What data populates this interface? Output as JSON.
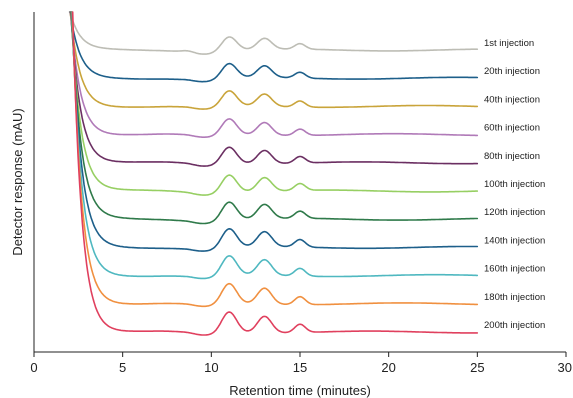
{
  "chart_data": {
    "type": "line",
    "title": "",
    "xlabel": "Retention time (minutes)",
    "ylabel": "Detector response (mAU)",
    "xlim": [
      0,
      30
    ],
    "xticks": [
      0,
      5,
      10,
      15,
      20,
      25,
      30
    ],
    "x_range_plotted": [
      2.0,
      25.0
    ],
    "y_axis": "stacked, unitless offsets (no tick labels)",
    "grid": false,
    "legend": "inline labels at right end of each trace",
    "peak_retention_times": [
      11.0,
      13.0,
      15.0
    ],
    "series": [
      {
        "name": "1st injection",
        "color": "#bdbdb5"
      },
      {
        "name": "20th injection",
        "color": "#1d5f8a"
      },
      {
        "name": "40th injection",
        "color": "#c9a43a"
      },
      {
        "name": "60th injection",
        "color": "#b07ab8"
      },
      {
        "name": "80th injection",
        "color": "#6b2f62"
      },
      {
        "name": "100th injection",
        "color": "#97cf63"
      },
      {
        "name": "120th injection",
        "color": "#2f7a4a"
      },
      {
        "name": "140th injection",
        "color": "#1d5f8a"
      },
      {
        "name": "160th injection",
        "color": "#4fb8c0"
      },
      {
        "name": "180th injection",
        "color": "#f09040"
      },
      {
        "name": "200th injection",
        "color": "#e0405e"
      }
    ]
  }
}
